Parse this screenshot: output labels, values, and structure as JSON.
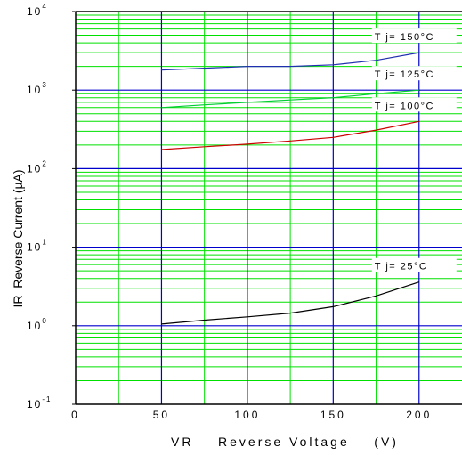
{
  "chart_data": {
    "type": "line",
    "title": "",
    "xlabel": "VR    Reverse Voltage    (V)",
    "ylabel": "IR  Reverse Current (µA)",
    "x_scale": "linear",
    "y_scale": "log",
    "xlim": [
      0,
      225
    ],
    "ylim": [
      0.1,
      10000
    ],
    "x_ticks": [
      0,
      50,
      100,
      150,
      200
    ],
    "y_tick_base": "10",
    "y_tick_exponents": [
      "-1",
      "0",
      "1",
      "2",
      "3",
      "4"
    ],
    "grid": true,
    "colors": {
      "major_grid": "#0000cc",
      "minor_grid": "#00e000",
      "frame": "#000000"
    },
    "series": [
      {
        "name": "T j= 150°C",
        "color": "#1f2fb0",
        "x": [
          50,
          75,
          100,
          125,
          150,
          175,
          200
        ],
        "y": [
          1800,
          1900,
          2000,
          2000,
          2100,
          2400,
          3000
        ]
      },
      {
        "name": "T j= 125°C",
        "color": "#00cc33",
        "x": [
          50,
          75,
          100,
          125,
          150,
          175,
          200
        ],
        "y": [
          600,
          650,
          700,
          750,
          800,
          900,
          1000
        ]
      },
      {
        "name": "T j= 100°C",
        "color": "#cc0000",
        "x": [
          50,
          75,
          100,
          125,
          150,
          175,
          200
        ],
        "y": [
          175,
          190,
          205,
          225,
          250,
          310,
          400
        ]
      },
      {
        "name": "T j=  25°C",
        "color": "#000000",
        "x": [
          50,
          75,
          100,
          125,
          150,
          175,
          200
        ],
        "y": [
          1.05,
          1.18,
          1.3,
          1.45,
          1.75,
          2.4,
          3.6
        ]
      }
    ]
  }
}
